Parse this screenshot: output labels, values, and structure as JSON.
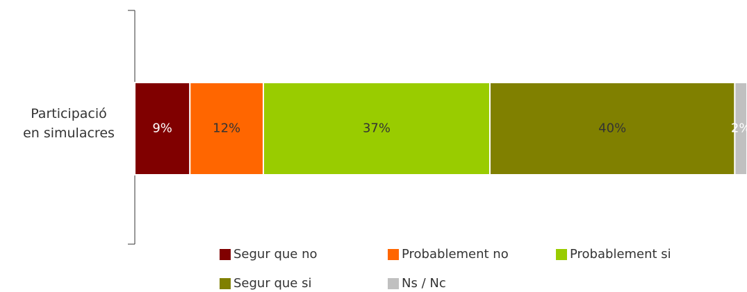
{
  "chart_data": {
    "type": "stacked-bar-horizontal",
    "categories": [
      "Participació\nen simulacres"
    ],
    "series": [
      {
        "name": "Segur que no",
        "color": "#800000",
        "label_color": "#ffffff",
        "values": [
          9
        ],
        "value_labels": [
          "9%"
        ]
      },
      {
        "name": "Probablement no",
        "color": "#ff6600",
        "label_color": "#333333",
        "values": [
          12
        ],
        "value_labels": [
          "12%"
        ]
      },
      {
        "name": "Probablement si",
        "color": "#99cc00",
        "label_color": "#333333",
        "values": [
          37
        ],
        "value_labels": [
          "37%"
        ]
      },
      {
        "name": "Segur que si",
        "color": "#808000",
        "label_color": "#333333",
        "values": [
          40
        ],
        "value_labels": [
          "40%"
        ]
      },
      {
        "name": "Ns / Nc",
        "color": "#c0c0c0",
        "label_color": "#ffffff",
        "values": [
          2
        ],
        "value_labels": [
          "2%"
        ]
      }
    ],
    "legend": "bottom"
  }
}
